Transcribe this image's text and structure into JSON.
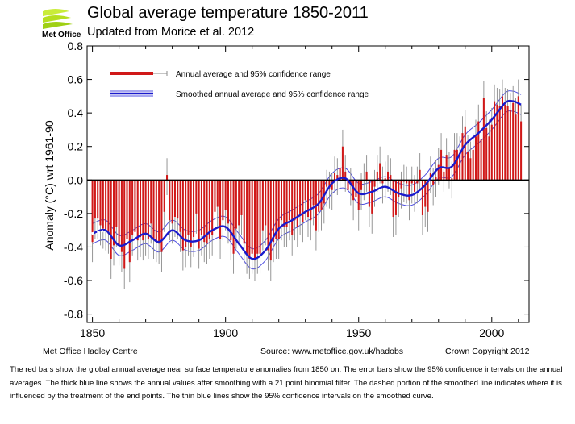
{
  "header": {
    "logo_text": "Met Office",
    "title": "Global average temperature 1850-2011",
    "subtitle": "Updated from Morice et al. 2012"
  },
  "chart_data": {
    "type": "bar",
    "title": "Global average temperature 1850-2011",
    "subtitle": "Updated from Morice et al. 2012",
    "xlabel": "",
    "ylabel": "Anomaly (°C) wrt 1961-90",
    "xlim": [
      1848,
      2014
    ],
    "ylim": [
      -0.85,
      0.8
    ],
    "x_ticks": [
      1850,
      1900,
      1950,
      2000
    ],
    "y_ticks": [
      -0.8,
      -0.6,
      -0.4,
      -0.2,
      0.0,
      0.2,
      0.4,
      0.6,
      0.8
    ],
    "y_tick_labels": [
      "-0.8",
      "-0.6",
      "-0.4",
      "-0.2",
      "0.0",
      "0.2",
      "0.4",
      "0.6",
      "0.8"
    ],
    "legend_position": "top-left",
    "legend": [
      "Annual average and 95% confidence range",
      "Smoothed annual average and 95% confidence range"
    ],
    "colors": {
      "bars": "#d01818",
      "error_bars": "#8a8a8a",
      "smooth": "#1a1acc",
      "smooth_ci": "#4f4fe0"
    },
    "annual_start_year": 1850,
    "annual_values": [
      -0.37,
      -0.23,
      -0.23,
      -0.27,
      -0.29,
      -0.3,
      -0.32,
      -0.47,
      -0.39,
      -0.28,
      -0.39,
      -0.43,
      -0.53,
      -0.35,
      -0.49,
      -0.33,
      -0.31,
      -0.36,
      -0.34,
      -0.36,
      -0.33,
      -0.35,
      -0.26,
      -0.35,
      -0.37,
      -0.38,
      -0.43,
      -0.19,
      0.03,
      -0.24,
      -0.26,
      -0.22,
      -0.23,
      -0.31,
      -0.42,
      -0.4,
      -0.33,
      -0.4,
      -0.34,
      -0.2,
      -0.41,
      -0.33,
      -0.37,
      -0.38,
      -0.35,
      -0.33,
      -0.19,
      -0.16,
      -0.35,
      -0.24,
      -0.18,
      -0.26,
      -0.36,
      -0.44,
      -0.29,
      -0.27,
      -0.21,
      -0.38,
      -0.44,
      -0.47,
      -0.44,
      -0.48,
      -0.44,
      -0.44,
      -0.3,
      -0.27,
      -0.42,
      -0.48,
      -0.37,
      -0.35,
      -0.35,
      -0.24,
      -0.28,
      -0.28,
      -0.24,
      -0.33,
      -0.24,
      -0.28,
      -0.21,
      -0.25,
      -0.12,
      -0.22,
      -0.24,
      -0.15,
      -0.3,
      -0.19,
      -0.18,
      -0.14,
      -0.04,
      -0.05,
      -0.06,
      0.04,
      0.03,
      0.07,
      0.2,
      0.05,
      -0.06,
      -0.03,
      -0.12,
      -0.1,
      -0.18,
      -0.06,
      0.0,
      0.05,
      -0.16,
      -0.2,
      -0.04,
      0.05,
      0.1,
      -0.02,
      0.01,
      0.05,
      0.03,
      -0.22,
      -0.21,
      -0.1,
      -0.05,
      -0.01,
      -0.02,
      -0.12,
      -0.02,
      -0.07,
      -0.02,
      0.06,
      -0.21,
      -0.16,
      -0.19,
      0.04,
      -0.03,
      0.02,
      0.09,
      0.18,
      0.05,
      0.15,
      0.07,
      0.01,
      0.18,
      0.18,
      0.16,
      0.28,
      0.32,
      0.17,
      0.13,
      0.18,
      0.26,
      0.35,
      0.24,
      0.49,
      0.31,
      0.26,
      0.33,
      0.47,
      0.45,
      0.44,
      0.5,
      0.45,
      0.44,
      0.42,
      0.46,
      0.39,
      0.5,
      0.35
    ],
    "error_low": -0.12,
    "error_high": 0.1,
    "smooth": {
      "x": [
        1850,
        1855,
        1860,
        1865,
        1870,
        1875,
        1880,
        1885,
        1890,
        1895,
        1900,
        1905,
        1910,
        1915,
        1920,
        1925,
        1930,
        1935,
        1940,
        1945,
        1950,
        1955,
        1960,
        1965,
        1970,
        1975,
        1980,
        1985,
        1990,
        1995,
        2000,
        2005,
        2008,
        2011
      ],
      "y": [
        -0.32,
        -0.3,
        -0.39,
        -0.36,
        -0.32,
        -0.37,
        -0.3,
        -0.36,
        -0.36,
        -0.3,
        -0.28,
        -0.38,
        -0.47,
        -0.42,
        -0.29,
        -0.24,
        -0.19,
        -0.14,
        -0.02,
        0.01,
        -0.08,
        -0.07,
        -0.04,
        -0.08,
        -0.09,
        -0.03,
        0.07,
        0.08,
        0.21,
        0.28,
        0.36,
        0.46,
        0.47,
        0.45
      ],
      "ci_halfwidth": 0.06,
      "dashed_end_years": 4
    }
  },
  "footer": {
    "left": "Met Office Hadley Centre",
    "middle": "Source: www.metoffice.gov.uk/hadobs",
    "right": "Crown Copyright 2012"
  },
  "caption": "The red bars show the global annual average near surface temperature anomalies from 1850 on. The error bars show the 95% confidence intervals on the annual averages. The thick blue line shows the annual values after smoothing with a 21 point binomial filter. The dashed portion of the smoothed line indicates where it is influenced by the treatment of the end points. The thin blue lines show the 95% confidence intervals on the smoothed curve."
}
